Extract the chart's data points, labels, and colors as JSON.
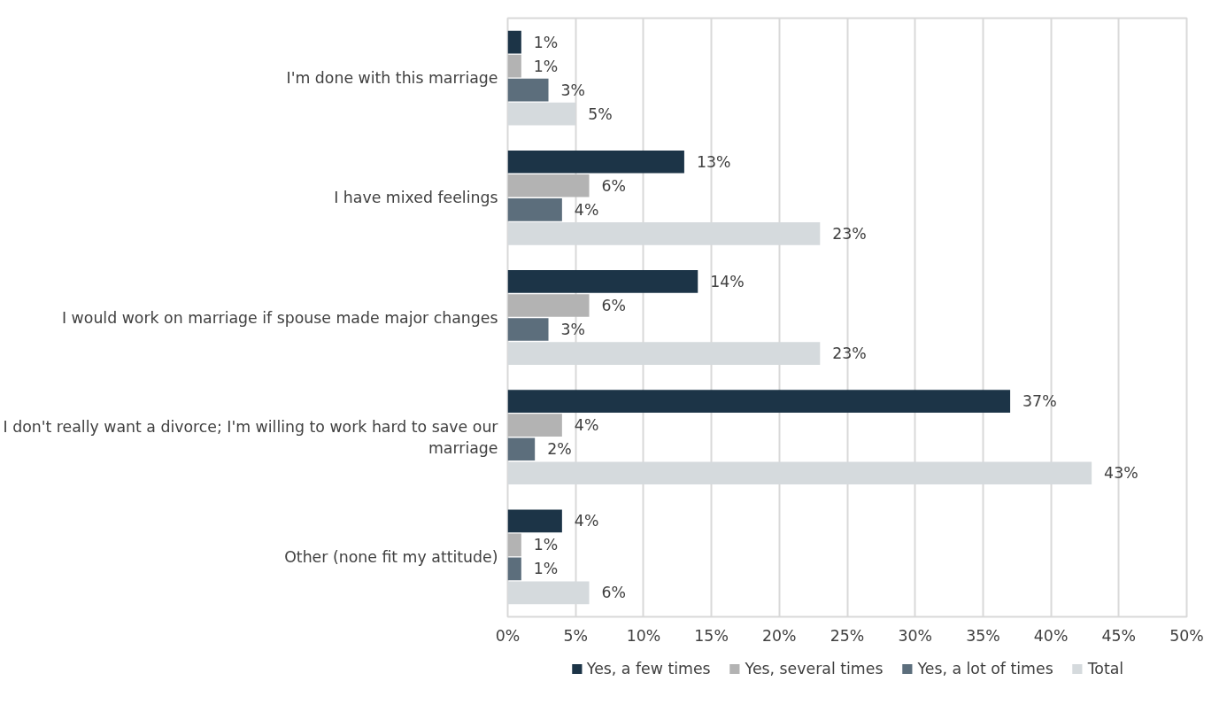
{
  "chart_data": {
    "type": "bar",
    "orientation": "horizontal",
    "categories": [
      "I'm done with this marriage",
      "I have mixed feelings",
      "I would work on marriage if spouse made major changes",
      "I don't really want a divorce; I'm willing to work hard to save our marriage",
      "Other (none fit my attitude)"
    ],
    "series": [
      {
        "name": "Yes, a few times",
        "color": "#1c3447",
        "values": [
          1,
          13,
          14,
          37,
          4
        ],
        "value_labels": [
          "1%",
          "13%",
          "14%",
          "37%",
          "4%"
        ]
      },
      {
        "name": "Yes, several times",
        "color": "#b3b3b3",
        "values": [
          1,
          6,
          6,
          4,
          1
        ],
        "value_labels": [
          "1%",
          "6%",
          "6%",
          "4%",
          "1%"
        ]
      },
      {
        "name": "Yes, a lot of times",
        "color": "#5c6e7c",
        "values": [
          3,
          4,
          3,
          2,
          1
        ],
        "value_labels": [
          "3%",
          "4%",
          "3%",
          "2%",
          "1%"
        ]
      },
      {
        "name": "Total",
        "color": "#d5dadd",
        "values": [
          5,
          23,
          23,
          43,
          6
        ],
        "value_labels": [
          "5%",
          "23%",
          "23%",
          "43%",
          "6%"
        ]
      }
    ],
    "xlim": [
      0,
      50
    ],
    "xticks": [
      {
        "value": 0,
        "label": "0%"
      },
      {
        "value": 5,
        "label": "5%"
      },
      {
        "value": 10,
        "label": "10%"
      },
      {
        "value": 15,
        "label": "15%"
      },
      {
        "value": 20,
        "label": "20%"
      },
      {
        "value": 25,
        "label": "25%"
      },
      {
        "value": 30,
        "label": "30%"
      },
      {
        "value": 35,
        "label": "35%"
      },
      {
        "value": 40,
        "label": "40%"
      },
      {
        "value": 45,
        "label": "45%"
      },
      {
        "value": 50,
        "label": "50%"
      }
    ],
    "grid": "x",
    "legend": "bottom"
  }
}
